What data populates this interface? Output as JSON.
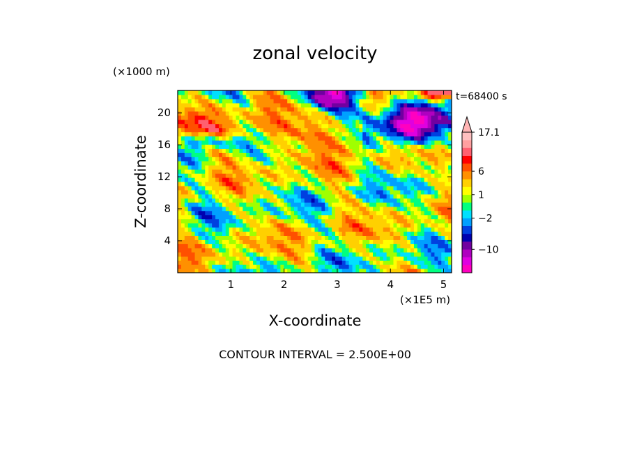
{
  "chart_data": {
    "type": "heatmap",
    "title": "zonal velocity",
    "xlabel": "X-coordinate",
    "ylabel": "Z-coordinate",
    "x_scale_label": "(×1E5 m)",
    "y_scale_label": "(×1000 m)",
    "time_label": "t=68400 s",
    "footer": "CONTOUR INTERVAL = 2.500E+00",
    "xlim": [
      0,
      5.15
    ],
    "ylim": [
      0,
      22.8
    ],
    "x_ticks": [
      1,
      2,
      3,
      4,
      5
    ],
    "y_ticks": [
      4,
      8,
      12,
      16,
      20
    ],
    "x_tick_labels": [
      "1",
      "2",
      "3",
      "4",
      "5"
    ],
    "y_tick_labels": [
      "4",
      "8",
      "12",
      "16",
      "20"
    ],
    "colorbar": {
      "levels": [
        -17.1,
        -14,
        -12,
        -10,
        -8,
        -6,
        -4,
        -2,
        -1,
        0,
        1,
        2,
        4,
        6,
        8,
        10,
        12.5,
        15,
        17.1
      ],
      "colors": [
        "#ff00c0",
        "#e000e0",
        "#b000c0",
        "#7000a0",
        "#0000b0",
        "#0040e0",
        "#00a0ff",
        "#00e0ff",
        "#00ff80",
        "#a0ff00",
        "#ffff00",
        "#ffd000",
        "#ff9000",
        "#ff5000",
        "#ff0000",
        "#ff6070",
        "#ffa0a0",
        "#ffc0c0"
      ],
      "labeled_values": [
        "17.1",
        "6",
        "1",
        "−2",
        "−10"
      ]
    },
    "field_note": "Zonal velocity (m/s) over x 0–5.15 ×1E5 m and z 0–22.8 km; negative (blue/purple) cores near the top at x≈2.5–3.3 and x≈3.7–5.0, positive (orange/red) bands near z≈16–20 km."
  }
}
